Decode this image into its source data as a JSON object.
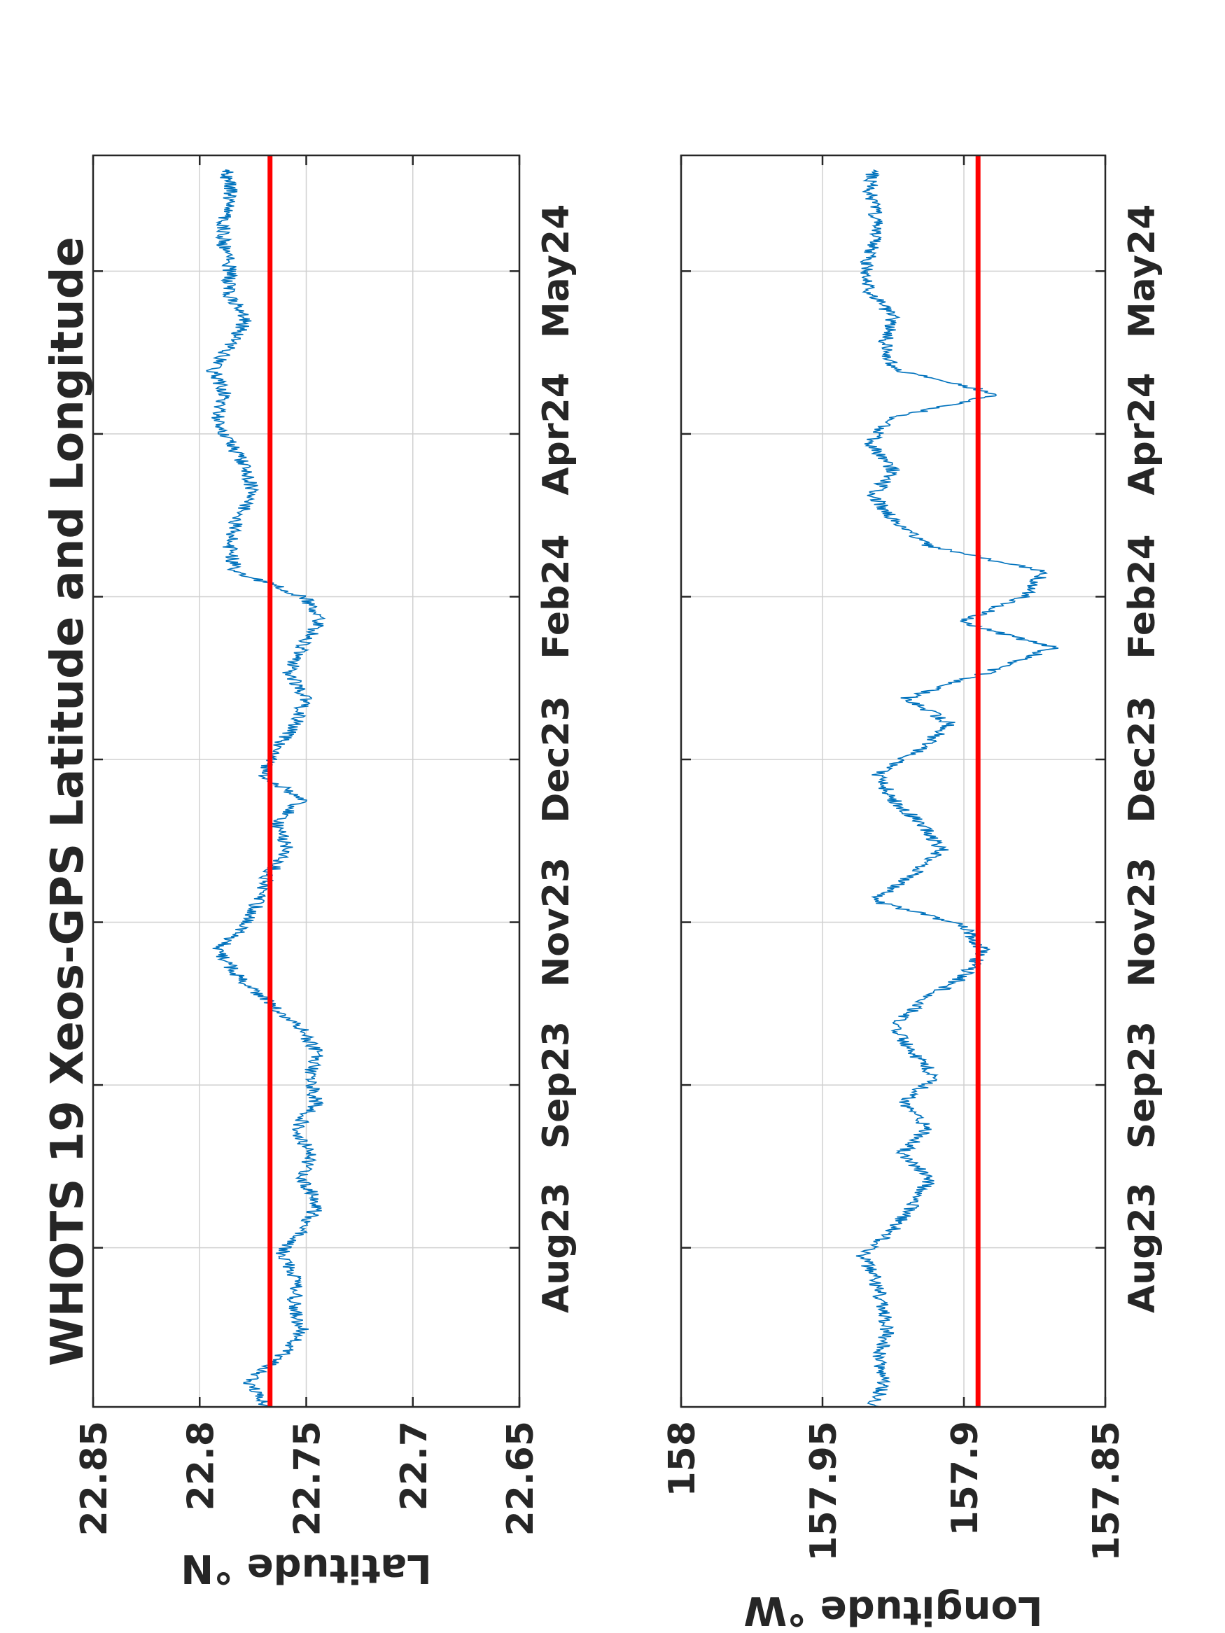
{
  "title": "WHOTS 19 Xeos-GPS Latitude and Longitude",
  "chart_data": [
    {
      "type": "line",
      "ylabel": "Latitude °N",
      "ylim": [
        22.65,
        22.85
      ],
      "yticks": [
        "22.85",
        "22.8",
        "22.75",
        "22.7",
        "22.65"
      ],
      "ytick_values": [
        22.85,
        22.8,
        22.75,
        22.7,
        22.65
      ],
      "xlim": [
        "2023-06-18",
        "2024-05-29"
      ],
      "xticks": [
        "Aug23",
        "Sep23",
        "Nov23",
        "Dec23",
        "Feb24",
        "Apr24",
        "May24"
      ],
      "xtick_dates": [
        "2023-08-01",
        "2023-09-15",
        "2023-10-30",
        "2023-12-14",
        "2024-01-28",
        "2024-03-13",
        "2024-04-27"
      ],
      "grid": true,
      "reference_line": {
        "value": 22.767,
        "color": "#ff0000"
      },
      "series": [
        {
          "color": "#0072bd",
          "points": [
            [
              "2023-06-18",
              22.768
            ],
            [
              "2023-06-25",
              22.777
            ],
            [
              "2023-07-02",
              22.762
            ],
            [
              "2023-07-09",
              22.752
            ],
            [
              "2023-07-16",
              22.756
            ],
            [
              "2023-07-23",
              22.754
            ],
            [
              "2023-07-30",
              22.762
            ],
            [
              "2023-08-06",
              22.752
            ],
            [
              "2023-08-13",
              22.744
            ],
            [
              "2023-08-20",
              22.752
            ],
            [
              "2023-08-27",
              22.748
            ],
            [
              "2023-09-03",
              22.755
            ],
            [
              "2023-09-10",
              22.745
            ],
            [
              "2023-09-17",
              22.749
            ],
            [
              "2023-09-24",
              22.745
            ],
            [
              "2023-10-01",
              22.753
            ],
            [
              "2023-10-08",
              22.768
            ],
            [
              "2023-10-15",
              22.782
            ],
            [
              "2023-10-22",
              22.792
            ],
            [
              "2023-10-29",
              22.779
            ],
            [
              "2023-11-05",
              22.772
            ],
            [
              "2023-11-12",
              22.768
            ],
            [
              "2023-11-19",
              22.758
            ],
            [
              "2023-11-26",
              22.764
            ],
            [
              "2023-12-03",
              22.752
            ],
            [
              "2023-12-10",
              22.771
            ],
            [
              "2023-12-17",
              22.764
            ],
            [
              "2023-12-24",
              22.755
            ],
            [
              "2023-12-31",
              22.751
            ],
            [
              "2024-01-07",
              22.758
            ],
            [
              "2024-01-14",
              22.752
            ],
            [
              "2024-01-21",
              22.744
            ],
            [
              "2024-01-28",
              22.751
            ],
            [
              "2024-02-04",
              22.783
            ],
            [
              "2024-02-11",
              22.786
            ],
            [
              "2024-02-18",
              22.783
            ],
            [
              "2024-02-25",
              22.775
            ],
            [
              "2024-03-03",
              22.778
            ],
            [
              "2024-03-10",
              22.785
            ],
            [
              "2024-03-17",
              22.792
            ],
            [
              "2024-03-24",
              22.788
            ],
            [
              "2024-03-31",
              22.794
            ],
            [
              "2024-04-07",
              22.785
            ],
            [
              "2024-04-14",
              22.778
            ],
            [
              "2024-04-21",
              22.787
            ],
            [
              "2024-04-28",
              22.786
            ],
            [
              "2024-05-05",
              22.789
            ],
            [
              "2024-05-12",
              22.788
            ],
            [
              "2024-05-19",
              22.785
            ],
            [
              "2024-05-25",
              22.788
            ]
          ]
        }
      ]
    },
    {
      "type": "line",
      "ylabel": "Longitude °W",
      "ylim": [
        157.85,
        158
      ],
      "yticks": [
        "158",
        "157.95",
        "157.9",
        "157.85"
      ],
      "ytick_values": [
        158,
        157.95,
        157.9,
        157.85
      ],
      "xlim": [
        "2023-06-18",
        "2024-05-29"
      ],
      "xticks": [
        "Aug23",
        "Sep23",
        "Nov23",
        "Dec23",
        "Feb24",
        "Apr24",
        "May24"
      ],
      "xtick_dates": [
        "2023-08-01",
        "2023-09-15",
        "2023-10-30",
        "2023-12-14",
        "2024-01-28",
        "2024-03-13",
        "2024-04-27"
      ],
      "grid": true,
      "reference_line": {
        "value": 157.895,
        "color": "#ff0000"
      },
      "series": [
        {
          "color": "#0072bd",
          "points": [
            [
              "2023-06-18",
              157.932
            ],
            [
              "2023-06-25",
              157.928
            ],
            [
              "2023-07-02",
              157.93
            ],
            [
              "2023-07-09",
              157.927
            ],
            [
              "2023-07-16",
              157.929
            ],
            [
              "2023-07-23",
              157.931
            ],
            [
              "2023-07-30",
              157.936
            ],
            [
              "2023-08-06",
              157.925
            ],
            [
              "2023-08-13",
              157.918
            ],
            [
              "2023-08-20",
              157.912
            ],
            [
              "2023-08-27",
              157.922
            ],
            [
              "2023-09-03",
              157.913
            ],
            [
              "2023-09-10",
              157.922
            ],
            [
              "2023-09-17",
              157.91
            ],
            [
              "2023-09-24",
              157.918
            ],
            [
              "2023-10-01",
              157.925
            ],
            [
              "2023-10-08",
              157.915
            ],
            [
              "2023-10-15",
              157.9
            ],
            [
              "2023-10-22",
              157.893
            ],
            [
              "2023-10-29",
              157.9
            ],
            [
              "2023-11-05",
              157.932
            ],
            [
              "2023-11-12",
              157.918
            ],
            [
              "2023-11-19",
              157.908
            ],
            [
              "2023-11-26",
              157.915
            ],
            [
              "2023-12-03",
              157.925
            ],
            [
              "2023-12-10",
              157.931
            ],
            [
              "2023-12-17",
              157.915
            ],
            [
              "2023-12-24",
              157.905
            ],
            [
              "2023-12-31",
              157.92
            ],
            [
              "2024-01-07",
              157.892
            ],
            [
              "2024-01-14",
              157.868
            ],
            [
              "2024-01-21",
              157.902
            ],
            [
              "2024-01-28",
              157.878
            ],
            [
              "2024-02-04",
              157.872
            ],
            [
              "2024-02-11",
              157.912
            ],
            [
              "2024-02-18",
              157.925
            ],
            [
              "2024-02-25",
              157.932
            ],
            [
              "2024-03-03",
              157.925
            ],
            [
              "2024-03-10",
              157.933
            ],
            [
              "2024-03-17",
              157.927
            ],
            [
              "2024-03-24",
              157.888
            ],
            [
              "2024-03-31",
              157.925
            ],
            [
              "2024-04-07",
              157.928
            ],
            [
              "2024-04-14",
              157.925
            ],
            [
              "2024-04-21",
              157.933
            ],
            [
              "2024-04-28",
              157.935
            ],
            [
              "2024-05-05",
              157.932
            ],
            [
              "2024-05-12",
              157.931
            ],
            [
              "2024-05-19",
              157.933
            ],
            [
              "2024-05-25",
              157.932
            ]
          ]
        }
      ]
    }
  ]
}
